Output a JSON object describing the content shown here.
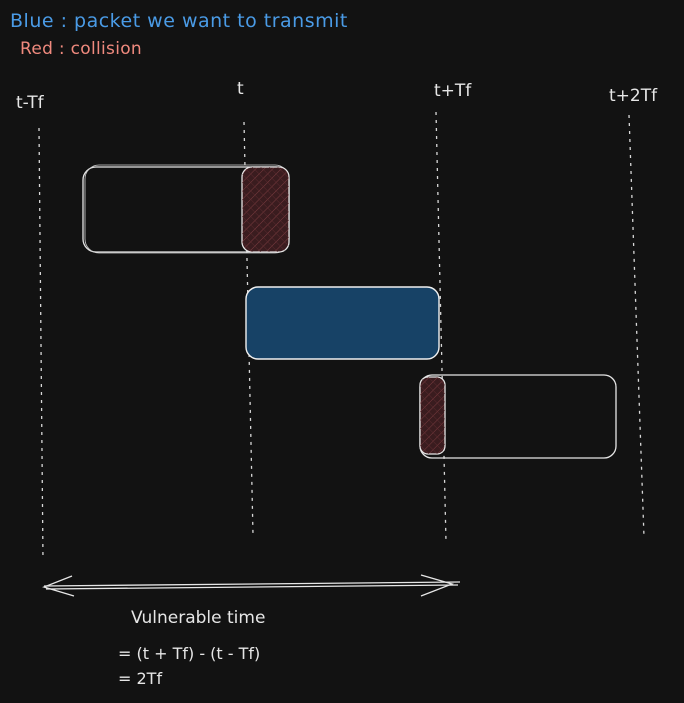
{
  "legend": {
    "blue": "Blue : packet we want to transmit",
    "red": "Red : collision"
  },
  "time_labels": [
    "t-Tf",
    "t",
    "t+Tf",
    "t+2Tf"
  ],
  "annotation": {
    "title": "Vulnerable time",
    "line1": "= (t + Tf) - (t - Tf)",
    "line2": "= 2Tf"
  },
  "colors": {
    "background": "#121212",
    "packet_fill": "#174266",
    "collision_fill": "#3a1c1f",
    "legend_blue": "#4a9be6",
    "legend_red": "#f08a7e",
    "stroke": "#e6e6e6"
  }
}
